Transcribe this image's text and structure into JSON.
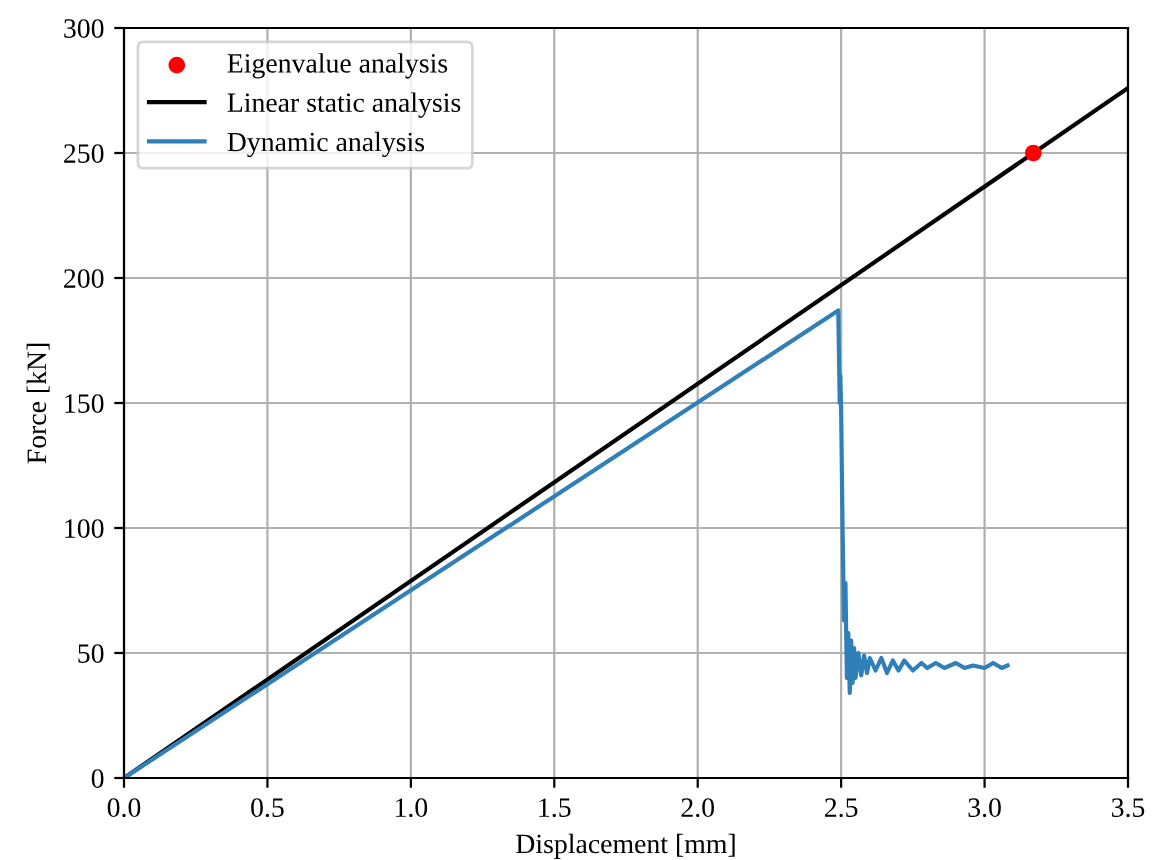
{
  "chart_data": {
    "type": "line",
    "xlabel": "Displacement [mm]",
    "ylabel": "Force [kN]",
    "xlim": [
      0,
      3.5
    ],
    "ylim": [
      0,
      300
    ],
    "xticks": [
      {
        "value": 0,
        "label": "0.0"
      },
      {
        "value": 0.5,
        "label": "0.5"
      },
      {
        "value": 1,
        "label": "1.0"
      },
      {
        "value": 1.5,
        "label": "1.5"
      },
      {
        "value": 2,
        "label": "2.0"
      },
      {
        "value": 2.5,
        "label": "2.5"
      },
      {
        "value": 3,
        "label": "3.0"
      },
      {
        "value": 3.5,
        "label": "3.5"
      }
    ],
    "yticks": [
      0,
      50,
      100,
      150,
      200,
      250,
      300
    ],
    "grid": true,
    "legend": "top left",
    "series": [
      {
        "name": "Eigenvalue analysis",
        "type": "scatter",
        "color": "#ff0000",
        "marker": "circle",
        "x": [
          3.17
        ],
        "values": [
          250
        ]
      },
      {
        "name": "Linear static analysis",
        "color": "#000000",
        "x": [
          0,
          3.5
        ],
        "values": [
          0,
          276
        ]
      },
      {
        "name": "Dynamic analysis",
        "color": "#2f7fb8",
        "x": [
          0,
          2.49,
          2.495,
          2.497,
          2.5,
          2.505,
          2.51,
          2.515,
          2.52,
          2.525,
          2.53,
          2.535,
          2.54,
          2.545,
          2.55,
          2.56,
          2.57,
          2.58,
          2.59,
          2.6,
          2.62,
          2.64,
          2.66,
          2.68,
          2.7,
          2.72,
          2.75,
          2.78,
          2.8,
          2.83,
          2.86,
          2.9,
          2.93,
          2.96,
          3.0,
          3.03,
          3.06,
          3.08
        ],
        "values": [
          0,
          187,
          150,
          161,
          147,
          100,
          63,
          78,
          40,
          58,
          34,
          55,
          38,
          52,
          40,
          50,
          41,
          49,
          42,
          48,
          43,
          48,
          42,
          47,
          43,
          47,
          43,
          46,
          44,
          46,
          44,
          46,
          44,
          45,
          44,
          46,
          44,
          45
        ]
      }
    ]
  }
}
